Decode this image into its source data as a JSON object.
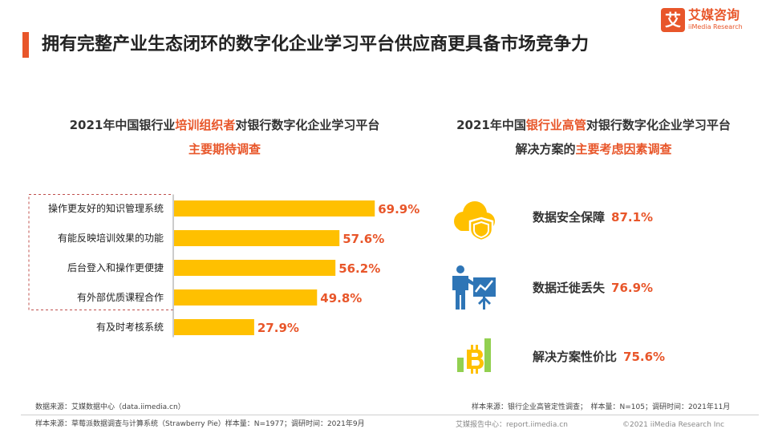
{
  "page": {
    "title": "拥有完整产业生态闭环的数字化企业学习平台供应商更具备市场竞争力"
  },
  "logo": {
    "mark": "艾",
    "cn": "艾媒咨询",
    "en": "iiMedia Research"
  },
  "left_panel": {
    "subtitle_line1": {
      "pre": "2021年中国银行业",
      "highlight": "培训组织者",
      "post": "对银行数字化企业学习平台"
    },
    "subtitle_line2": "主要期待调查"
  },
  "right_panel": {
    "subtitle_line1": {
      "pre": "2021年中国",
      "highlight": "银行业高管",
      "post": "对银行数字化企业学习平台"
    },
    "subtitle_line2": {
      "pre": "解决方案的",
      "highlight": "主要考虑因素调查"
    },
    "factors": [
      {
        "label": "数据安全保障",
        "value": "87.1%",
        "icon": "cloud-shield-icon"
      },
      {
        "label": "数据迁徙丢失",
        "value": "76.9%",
        "icon": "presenter-chart-icon"
      },
      {
        "label": "解决方案性价比",
        "value": "75.6%",
        "icon": "bitcoin-bars-icon"
      }
    ]
  },
  "chart_data": {
    "type": "bar",
    "orientation": "horizontal",
    "categories": [
      "操作更友好的知识管理系统",
      "有能反映培训效果的功能",
      "后台登入和操作更便捷",
      "有外部优质课程合作",
      "有及时考核系统"
    ],
    "values": [
      69.9,
      57.6,
      56.2,
      49.8,
      27.9
    ],
    "value_labels": [
      "69.9%",
      "57.6%",
      "56.2%",
      "49.8%",
      "27.9%"
    ],
    "xlim": [
      0,
      100
    ],
    "grid": false,
    "highlighted_categories": 4
  },
  "footer": {
    "left_source": "数据来源：艾媒数据中心（data.iimedia.cn）",
    "left_sample": "样本来源：草莓派数据调查与计算系统（Strawberry Pie）样本量：N=1977；调研时间：2021年9月",
    "right_sample": "样本来源：银行企业高管定性调查；　样本量：N=105；调研时间：2021年11月",
    "right_report": "艾媒报告中心：report.iimedia.cn",
    "copyright": "©2021  iiMedia Research  Inc"
  },
  "colors": {
    "accent": "#e8562a",
    "bar": "#ffc000",
    "icon_yellow": "#ffc000",
    "icon_blue": "#2e75b6",
    "icon_green": "#92d050"
  }
}
